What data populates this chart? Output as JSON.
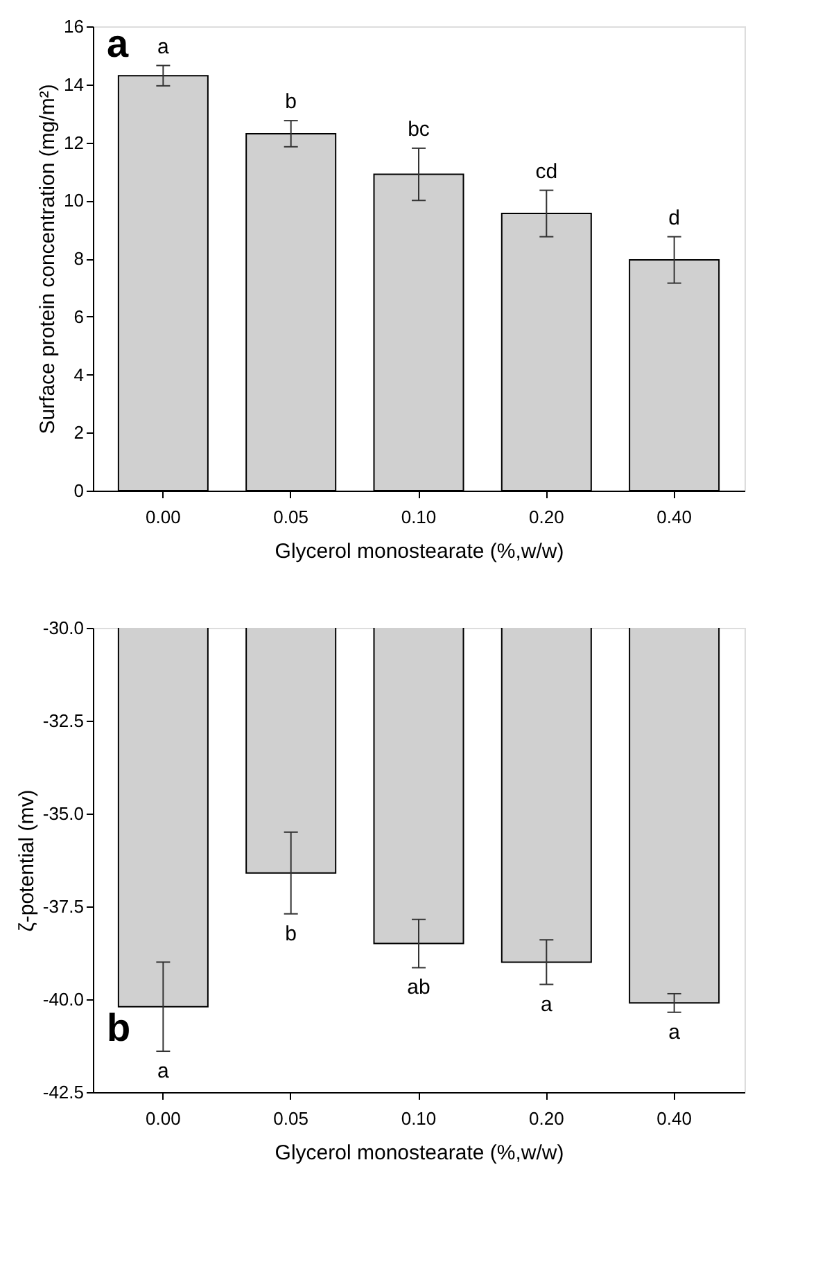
{
  "chart_data": [
    {
      "type": "bar",
      "xlabel": "Glycerol monostearate (%,w/w)",
      "ylabel": "Surface protein concentration (mg/m²)",
      "categories": [
        "0.00",
        "0.05",
        "0.10",
        "0.20",
        "0.40"
      ],
      "series": [
        {
          "color": "#d0d0d0",
          "values": [
            14.3,
            12.3,
            10.9,
            9.55,
            7.95
          ],
          "errors": [
            0.35,
            0.45,
            0.9,
            0.8,
            0.8
          ]
        }
      ],
      "ylim": [
        0,
        16
      ],
      "yticks": [
        0,
        2,
        4,
        6,
        8,
        10,
        12,
        14,
        16
      ],
      "grid": false,
      "annotations": [
        "a",
        "a",
        "b",
        "bc",
        "cd",
        "d"
      ]
    },
    {
      "type": "bar",
      "xlabel": "Glycerol monostearate (%,w/w)",
      "ylabel": "ζ-potential (mv)",
      "categories": [
        "0.00",
        "0.05",
        "0.10",
        "0.20",
        "0.40"
      ],
      "series": [
        {
          "color": "#d0d0d0",
          "values": [
            -40.2,
            -36.6,
            -38.5,
            -39.0,
            -40.1
          ],
          "errors": [
            1.2,
            1.1,
            0.65,
            0.6,
            0.25
          ]
        }
      ],
      "ylim": [
        -42.5,
        -30.0
      ],
      "yticks": [
        {
          "value": -42.5,
          "label": "-42.5"
        },
        {
          "value": -40,
          "label": "-40.0"
        },
        {
          "value": -37.5,
          "label": "-37.5"
        },
        {
          "value": -35,
          "label": "-35.0"
        },
        {
          "value": -32.5,
          "label": "-32.5"
        },
        {
          "value": -30,
          "label": "-30.0"
        }
      ],
      "grid": false,
      "annotations": [
        "b",
        "a",
        "b",
        "ab",
        "a",
        "a"
      ]
    }
  ]
}
